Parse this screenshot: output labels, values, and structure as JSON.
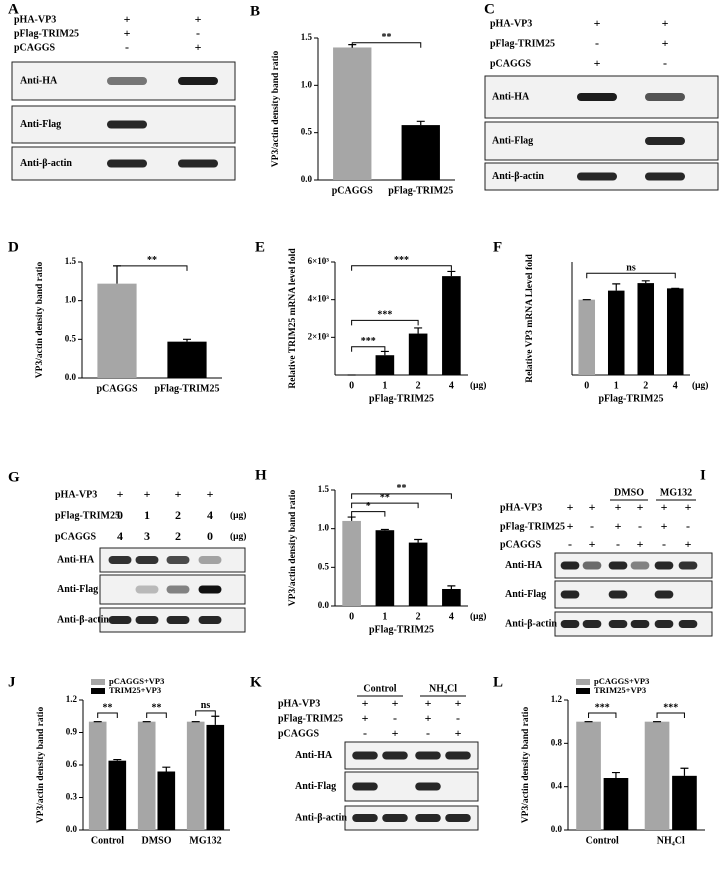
{
  "chart_data": [
    {
      "type": "bar",
      "label": "B",
      "y_label": "VP3/actin density band ratio",
      "categories": [
        "pCAGGS",
        "pFlag-TRIM25"
      ],
      "values": [
        1.4,
        0.58
      ],
      "errors": [
        0.03,
        0.04
      ],
      "colors": [
        "#a6a6a6",
        "#000000"
      ],
      "ylim": [
        0,
        1.5
      ],
      "yticks": [
        {
          "value": 0,
          "label": "0.0"
        },
        {
          "value": 0.5,
          "label": "0.5"
        },
        {
          "value": 1,
          "label": "1.0"
        },
        {
          "value": 1.5,
          "label": "1.5"
        }
      ],
      "annotations": [
        "**"
      ]
    },
    {
      "type": "bar",
      "label": "D",
      "y_label": "VP3/actin density band ratio",
      "categories": [
        "pCAGGS",
        "pFlag-TRIM25"
      ],
      "values": [
        1.22,
        0.47
      ],
      "errors": [
        0.23,
        0.03
      ],
      "colors": [
        "#a6a6a6",
        "#000000"
      ],
      "ylim": [
        0,
        1.5
      ],
      "yticks": [
        {
          "value": 0,
          "label": "0.0"
        },
        {
          "value": 0.5,
          "label": "0.5"
        },
        {
          "value": 1,
          "label": "1.0"
        },
        {
          "value": 1.5,
          "label": "1.5"
        }
      ],
      "annotations": [
        "**"
      ]
    },
    {
      "type": "bar",
      "label": "E",
      "y_label": "Relative TRIM25 mRNA level fold",
      "x_label": "pFlag-TRIM25",
      "x_unit": "(μg)",
      "categories": [
        "0",
        "1",
        "2",
        "4"
      ],
      "values": [
        0,
        1050,
        2200,
        5250
      ],
      "errors": [
        0,
        200,
        300,
        250
      ],
      "colors": [
        "#a6a6a6",
        "#000000",
        "#000000",
        "#000000"
      ],
      "ylim": [
        0,
        6000
      ],
      "yticks": [
        {
          "value": 2000,
          "label": "2×10³"
        },
        {
          "value": 4000,
          "label": "4×10³"
        },
        {
          "value": 6000,
          "label": "6×10³"
        }
      ],
      "annotations": [
        "***",
        "***",
        "***"
      ]
    },
    {
      "type": "bar",
      "label": "F",
      "y_label": "Relative VP3 mRNA Llevel fold",
      "x_label": "pFlag-TRIM25",
      "x_unit": "(μg)",
      "categories": [
        "0",
        "1",
        "2",
        "4"
      ],
      "values": [
        1.0,
        1.12,
        1.22,
        1.15
      ],
      "errors": [
        0,
        0.09,
        0.03,
        0
      ],
      "colors": [
        "#a6a6a6",
        "#000000",
        "#000000",
        "#000000"
      ],
      "ylim": [
        0,
        1.5
      ],
      "annotations": [
        "ns"
      ]
    },
    {
      "type": "bar",
      "label": "H",
      "y_label": "VP3/actin density band ratio",
      "x_label": "pFlag-TRIM25",
      "x_unit": "(μg)",
      "categories": [
        "0",
        "1",
        "2",
        "4"
      ],
      "values": [
        1.1,
        0.98,
        0.82,
        0.22
      ],
      "errors": [
        0.05,
        0.01,
        0.04,
        0.04
      ],
      "colors": [
        "#a6a6a6",
        "#000000",
        "#000000",
        "#000000"
      ],
      "ylim": [
        0,
        1.5
      ],
      "yticks": [
        {
          "value": 0,
          "label": "0.0"
        },
        {
          "value": 0.5,
          "label": "0.5"
        },
        {
          "value": 1,
          "label": "1.0"
        },
        {
          "value": 1.5,
          "label": "1.5"
        }
      ],
      "annotations": [
        "*",
        "**",
        "**"
      ]
    },
    {
      "type": "grouped_bar",
      "label": "J",
      "y_label": "VP3/actin density band ratio",
      "categories": [
        "Control",
        "DMSO",
        "MG132"
      ],
      "series": [
        {
          "name": "pCAGGS+VP3",
          "color": "#a6a6a6",
          "values": [
            1,
            1,
            1
          ],
          "errors": [
            0,
            0,
            0
          ]
        },
        {
          "name": "TRIM25+VP3",
          "color": "#000000",
          "values": [
            0.64,
            0.54,
            0.97
          ],
          "errors": [
            0.01,
            0.04,
            0.08
          ]
        }
      ],
      "ylim": [
        0,
        1.2
      ],
      "yticks": [
        {
          "value": 0,
          "label": "0.0"
        },
        {
          "value": 0.3,
          "label": "0.3"
        },
        {
          "value": 0.6,
          "label": "0.6"
        },
        {
          "value": 0.9,
          "label": "0.9"
        },
        {
          "value": 1.2,
          "label": "1.2"
        }
      ],
      "annotations": [
        "**",
        "**",
        "ns"
      ]
    },
    {
      "type": "grouped_bar",
      "label": "L",
      "y_label": "VP3/actin density band ratio",
      "categories": [
        "Control",
        "NH₄Cl"
      ],
      "series": [
        {
          "name": "pCAGGS+VP3",
          "color": "#a6a6a6",
          "values": [
            1,
            1
          ],
          "errors": [
            0,
            0
          ]
        },
        {
          "name": "TRIM25+VP3",
          "color": "#000000",
          "values": [
            0.48,
            0.5
          ],
          "errors": [
            0.05,
            0.07
          ]
        }
      ],
      "ylim": [
        0,
        1.2
      ],
      "yticks": [
        {
          "value": 0,
          "label": "0.0"
        },
        {
          "value": 0.4,
          "label": "0.4"
        },
        {
          "value": 0.8,
          "label": "0.8"
        },
        {
          "value": 1.2,
          "label": "1.2"
        }
      ],
      "annotations": [
        "***",
        "***"
      ]
    }
  ],
  "blots": [
    {
      "label": "A",
      "conditions": [
        {
          "name": "pHA-VP3",
          "signs": [
            "+",
            "+"
          ]
        },
        {
          "name": "pFlag-TRIM25",
          "signs": [
            "+",
            "-"
          ]
        },
        {
          "name": "pCAGGS",
          "signs": [
            "-",
            "+"
          ]
        }
      ],
      "antibodies": [
        "Anti-HA",
        "Anti-Flag",
        "Anti-β-actin"
      ]
    },
    {
      "label": "C",
      "conditions": [
        {
          "name": "pHA-VP3",
          "signs": [
            "+",
            "+"
          ]
        },
        {
          "name": "pFlag-TRIM25",
          "signs": [
            "-",
            "+"
          ]
        },
        {
          "name": "pCAGGS",
          "signs": [
            "+",
            "-"
          ]
        }
      ],
      "antibodies": [
        "Anti-HA",
        "Anti-Flag",
        "Anti-β-actin"
      ]
    },
    {
      "label": "G",
      "conditions": [
        {
          "name": "pHA-VP3",
          "signs": [
            "+",
            "+",
            "+",
            "+"
          ]
        },
        {
          "name": "pFlag-TRIM25",
          "signs": [
            "0",
            "1",
            "2",
            "4"
          ],
          "unit": "(μg)"
        },
        {
          "name": "pCAGGS",
          "signs": [
            "4",
            "3",
            "2",
            "0"
          ],
          "unit": "(μg)"
        }
      ],
      "antibodies": [
        "Anti-HA",
        "Anti-Flag",
        "Anti-β-actin"
      ]
    },
    {
      "label": "I",
      "groups": [
        "DMSO",
        "MG132"
      ],
      "conditions": [
        {
          "name": "pHA-VP3",
          "signs": [
            "+",
            "+",
            "+",
            "+",
            "+",
            "+"
          ]
        },
        {
          "name": "pFlag-TRIM25",
          "signs": [
            "+",
            "-",
            "+",
            "-",
            "+",
            "-"
          ]
        },
        {
          "name": "pCAGGS",
          "signs": [
            "-",
            "+",
            "-",
            "+",
            "-",
            "+"
          ]
        }
      ],
      "antibodies": [
        "Anti-HA",
        "Anti-Flag",
        "Anti-β-actin"
      ]
    },
    {
      "label": "K",
      "groups": [
        "Control",
        "NH₄Cl"
      ],
      "conditions": [
        {
          "name": "pHA-VP3",
          "signs": [
            "+",
            "+",
            "+",
            "+"
          ]
        },
        {
          "name": "pFlag-TRIM25",
          "signs": [
            "+",
            "-",
            "+",
            "-"
          ]
        },
        {
          "name": "pCAGGS",
          "signs": [
            "-",
            "+",
            "-",
            "+"
          ]
        }
      ],
      "antibodies": [
        "Anti-HA",
        "Anti-Flag",
        "Anti-β-actin"
      ]
    }
  ]
}
